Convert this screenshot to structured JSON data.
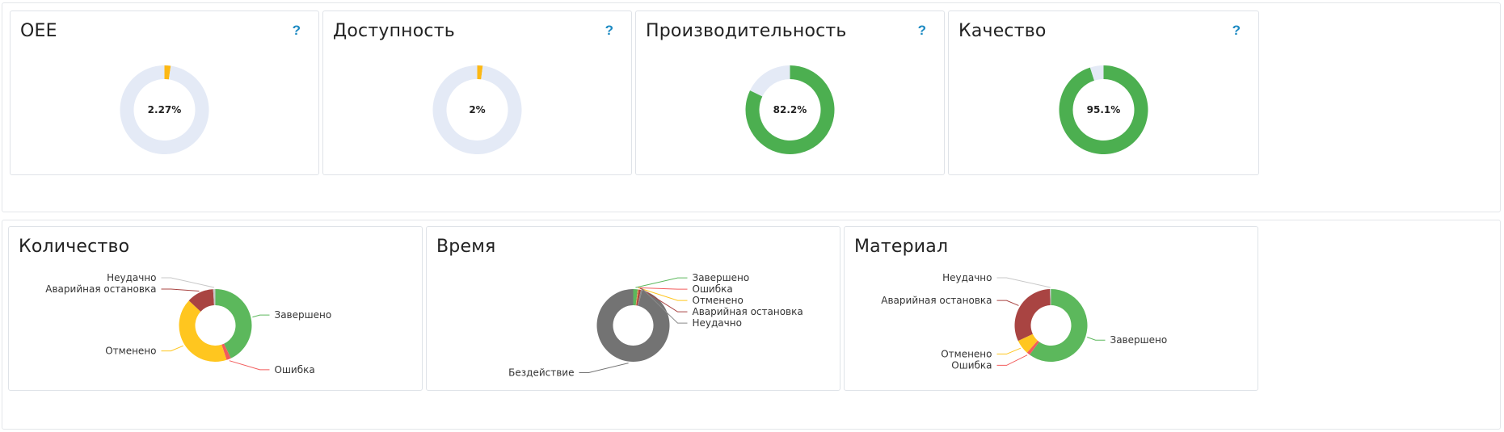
{
  "kpis": [
    {
      "title": "OEE",
      "help": "?",
      "center": "2.27%",
      "value": 2.27,
      "color": "#fcb814"
    },
    {
      "title": "Доступность",
      "help": "?",
      "center": "2%",
      "value": 2,
      "color": "#fcb814"
    },
    {
      "title": "Производительность",
      "help": "?",
      "center": "82.2%",
      "value": 82.2,
      "color": "#4caf50"
    },
    {
      "title": "Качество",
      "help": "?",
      "center": "95.1%",
      "value": 95.1,
      "color": "#4caf50"
    }
  ],
  "track_color": "#e4eaf6",
  "breakdowns": [
    {
      "title": "Количество"
    },
    {
      "title": "Время"
    },
    {
      "title": "Материал"
    }
  ],
  "chart_data": [
    {
      "type": "pie",
      "title": "OEE",
      "donut": true,
      "center_label": "2.27%",
      "values": [
        2.27,
        97.73
      ],
      "colors": [
        "#fcb814",
        "#e4eaf6"
      ]
    },
    {
      "type": "pie",
      "title": "Доступность",
      "donut": true,
      "center_label": "2%",
      "values": [
        2,
        98
      ],
      "colors": [
        "#fcb814",
        "#e4eaf6"
      ]
    },
    {
      "type": "pie",
      "title": "Производительность",
      "donut": true,
      "center_label": "82.2%",
      "values": [
        82.2,
        17.8
      ],
      "colors": [
        "#4caf50",
        "#e4eaf6"
      ]
    },
    {
      "type": "pie",
      "title": "Качество",
      "donut": true,
      "center_label": "95.1%",
      "values": [
        95.1,
        4.9
      ],
      "colors": [
        "#4caf50",
        "#e4eaf6"
      ]
    },
    {
      "type": "pie",
      "title": "Количество",
      "donut": true,
      "categories": [
        "Завершено",
        "Ошибка",
        "Отменено",
        "Аварийная остановка",
        "Неудачно"
      ],
      "values": [
        43,
        2,
        42,
        12,
        1
      ],
      "colors": [
        "#5cb85c",
        "#f25c5c",
        "#ffc61f",
        "#a94442",
        "#c8c8c8"
      ]
    },
    {
      "type": "pie",
      "title": "Время",
      "donut": true,
      "categories": [
        "Завершено",
        "Ошибка",
        "Отменено",
        "Аварийная остановка",
        "Неудачно",
        "Бездействие"
      ],
      "values": [
        2,
        0.2,
        0.2,
        1,
        0.6,
        96
      ],
      "colors": [
        "#5cb85c",
        "#f25c5c",
        "#ffc61f",
        "#a94442",
        "#8a8a8a",
        "#737373"
      ]
    },
    {
      "type": "pie",
      "title": "Материал",
      "donut": true,
      "categories": [
        "Завершено",
        "Ошибка",
        "Отменено",
        "Аварийная остановка",
        "Неудачно"
      ],
      "values": [
        60,
        1.5,
        6.5,
        31.5,
        0.5
      ],
      "colors": [
        "#5cb85c",
        "#f25c5c",
        "#ffc61f",
        "#a94442",
        "#c8c8c8"
      ]
    }
  ]
}
